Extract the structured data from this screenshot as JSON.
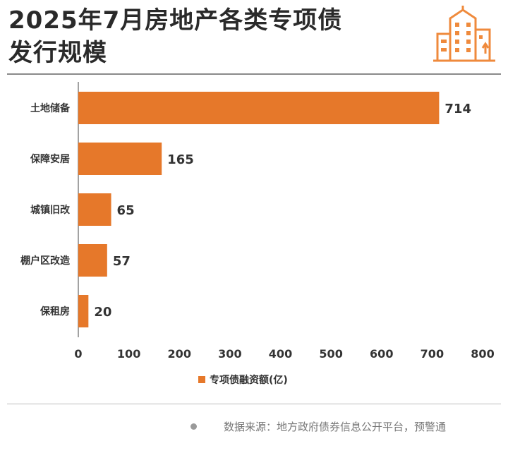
{
  "header": {
    "title_line1": "2025年7月房地产各类专项债",
    "title_line2": "发行规模"
  },
  "colors": {
    "bar": "#e6782a",
    "logo": "#ef8a3c",
    "text": "#2b2b2b"
  },
  "icons": {
    "logo": "buildings-icon"
  },
  "chart_data": {
    "type": "bar",
    "orientation": "horizontal",
    "categories": [
      "土地储备",
      "保障安居",
      "城镇旧改",
      "棚户区改造",
      "保租房"
    ],
    "series": [
      {
        "name": "专项债融资额(亿)",
        "values": [
          714,
          165,
          65,
          57,
          20
        ]
      }
    ],
    "xlim": [
      0,
      800
    ],
    "xticks": [
      0,
      100,
      200,
      300,
      400,
      500,
      600,
      700,
      800
    ],
    "grid": false,
    "legend": "bottom-center"
  },
  "legend": {
    "label": "专项债融资额(亿)"
  },
  "footer": {
    "source": "数据来源：地方政府债券信息公开平台，预警通"
  }
}
